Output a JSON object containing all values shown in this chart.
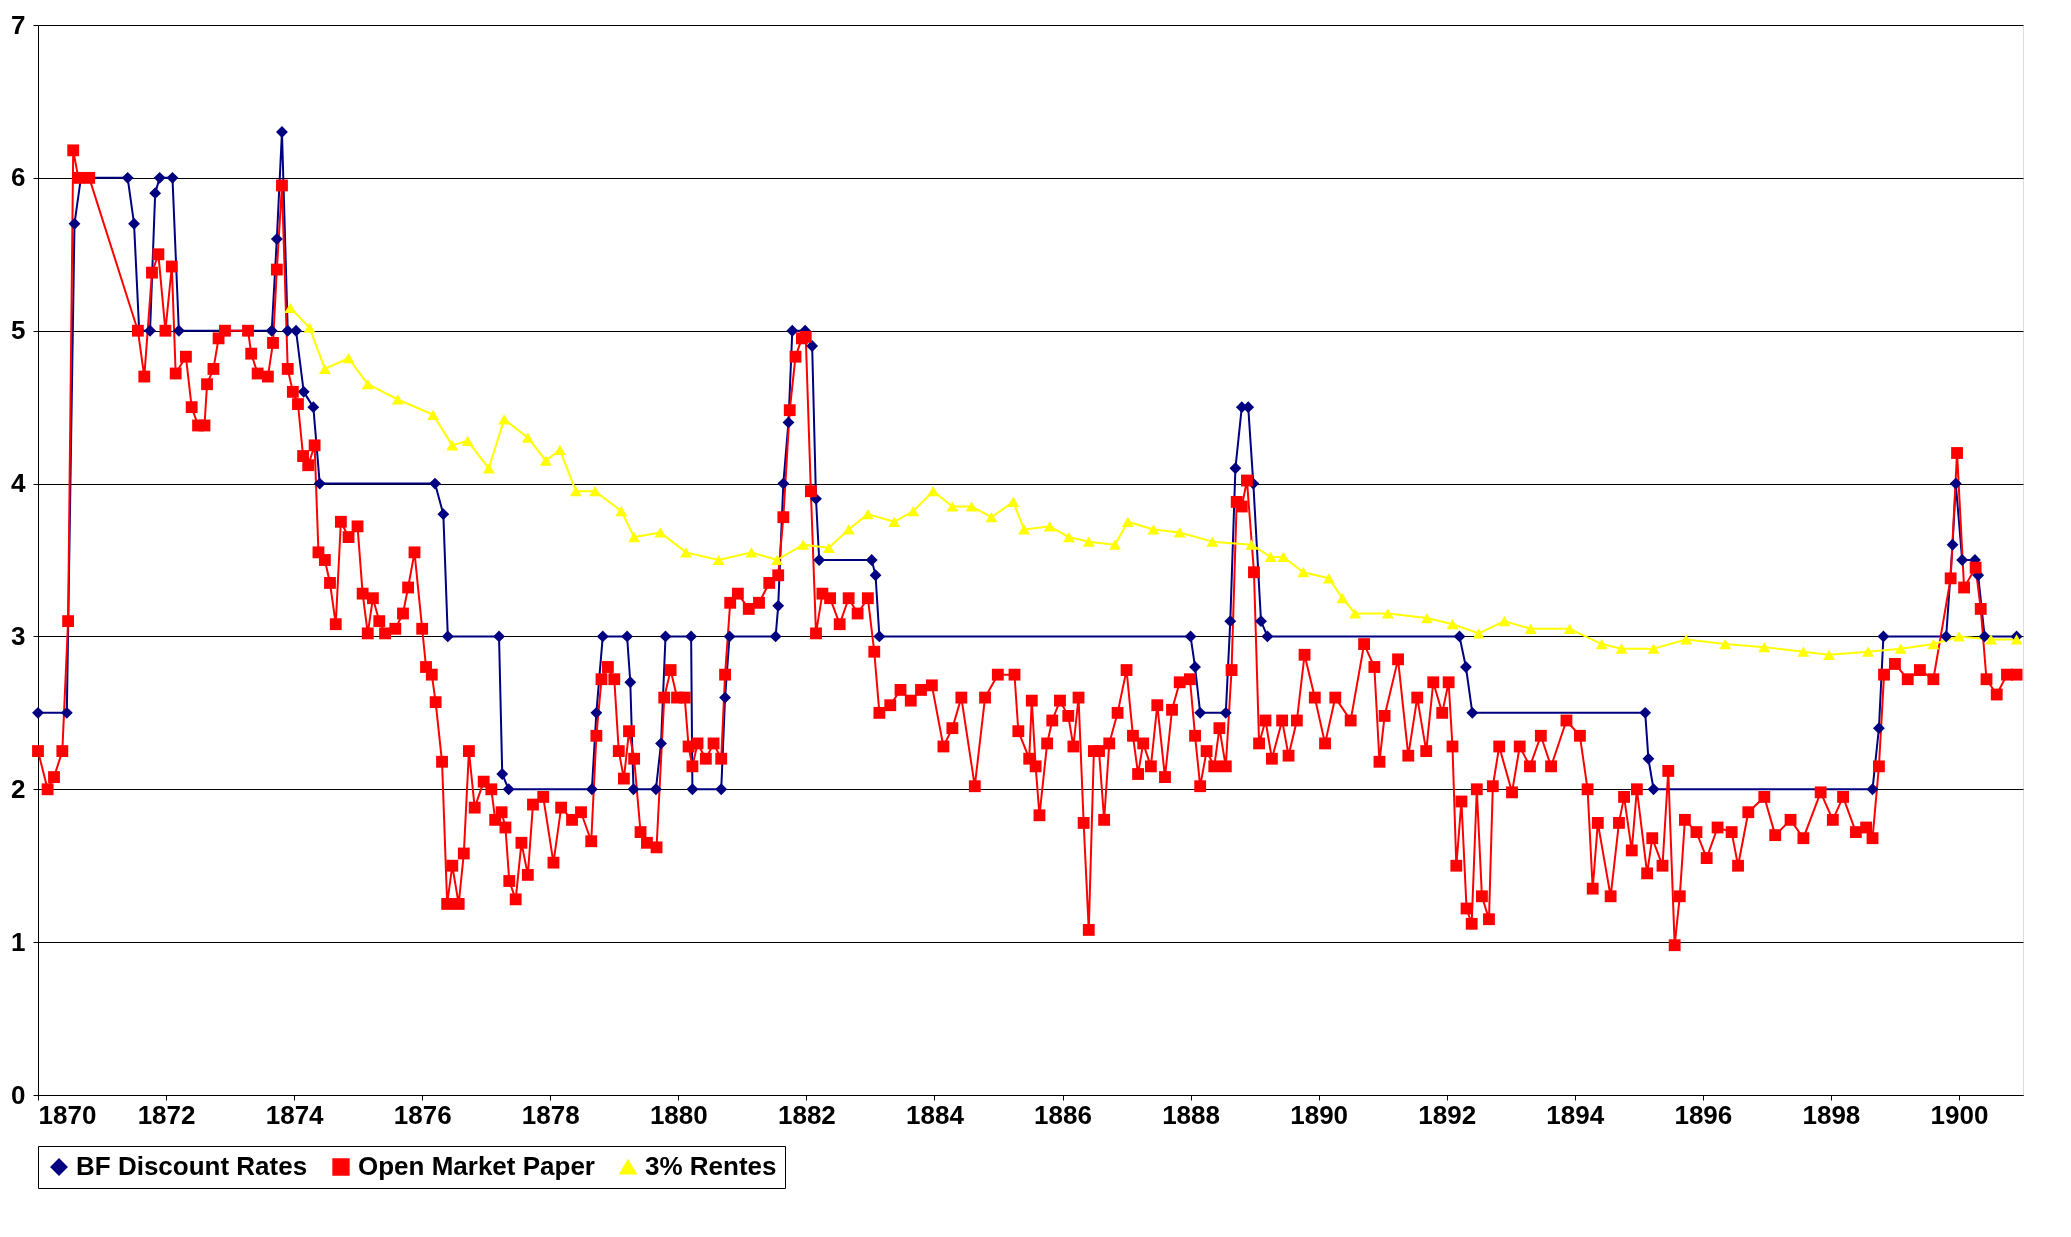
{
  "chart_data": {
    "type": "line",
    "xlim": [
      1870,
      1901
    ],
    "xticks": [
      1870,
      1872,
      1874,
      1876,
      1878,
      1880,
      1882,
      1884,
      1886,
      1888,
      1890,
      1892,
      1894,
      1896,
      1898,
      1900
    ],
    "ylim": [
      0,
      7
    ],
    "yticks": [
      0,
      1,
      2,
      3,
      4,
      5,
      6,
      7
    ],
    "grid": "y",
    "legend": "bottom",
    "series": [
      {
        "name": "BF Discount Rates",
        "color": "#000080",
        "marker": "diamond",
        "x": [
          1870.0,
          1870.45,
          1870.57,
          1870.67,
          1871.4,
          1871.5,
          1871.58,
          1871.75,
          1871.83,
          1871.9,
          1872.1,
          1872.2,
          1873.65,
          1873.73,
          1873.81,
          1873.9,
          1874.03,
          1874.15,
          1874.3,
          1874.4,
          1876.2,
          1876.33,
          1876.4,
          1877.2,
          1877.25,
          1877.35,
          1878.65,
          1878.72,
          1878.82,
          1879.2,
          1879.25,
          1879.3,
          1879.65,
          1879.73,
          1879.8,
          1880.2,
          1880.22,
          1880.67,
          1880.73,
          1880.8,
          1881.52,
          1881.56,
          1881.64,
          1881.72,
          1881.78,
          1881.98,
          1882.09,
          1882.15,
          1882.2,
          1883.02,
          1883.08,
          1883.14,
          1888.0,
          1888.07,
          1888.15,
          1888.55,
          1888.62,
          1888.7,
          1888.8,
          1888.9,
          1888.98,
          1889.1,
          1889.2,
          1892.2,
          1892.3,
          1892.4,
          1895.1,
          1895.15,
          1895.23,
          1898.65,
          1898.75,
          1898.82,
          1899.8,
          1899.9,
          1899.95,
          1900.05,
          1900.25,
          1900.3,
          1900.4,
          1900.9
        ],
        "values": [
          2.5,
          2.5,
          5.7,
          6,
          6,
          5.7,
          5,
          5,
          5.9,
          6,
          6,
          5,
          5,
          5.6,
          6.3,
          5,
          5,
          4.6,
          4.5,
          4,
          4,
          3.8,
          3,
          3,
          2.1,
          2,
          2,
          2.5,
          3,
          3,
          2.7,
          2,
          2,
          2.3,
          3,
          3,
          2,
          2,
          2.6,
          3,
          3,
          3.2,
          4,
          4.4,
          5,
          5,
          4.9,
          3.9,
          3.5,
          3.5,
          3.4,
          3,
          3,
          2.8,
          2.5,
          2.5,
          3.1,
          4.1,
          4.5,
          4.5,
          4,
          3.1,
          3,
          3,
          2.8,
          2.5,
          2.5,
          2.2,
          2,
          2,
          2.4,
          3,
          3,
          3.6,
          4,
          3.5,
          3.5,
          3.4,
          3,
          3
        ]
      },
      {
        "name": "Open Market Paper",
        "color": "#ff0000",
        "marker": "square",
        "x": [
          1870.0,
          1870.15,
          1870.25,
          1870.38,
          1870.47,
          1870.55,
          1870.63,
          1870.8,
          1871.56,
          1871.66,
          1871.78,
          1871.88,
          1871.99,
          1872.09,
          1872.15,
          1872.31,
          1872.4,
          1872.5,
          1872.6,
          1872.64,
          1872.74,
          1872.82,
          1872.92,
          1873.28,
          1873.33,
          1873.43,
          1873.59,
          1873.67,
          1873.73,
          1873.81,
          1873.9,
          1873.98,
          1874.06,
          1874.14,
          1874.22,
          1874.32,
          1874.38,
          1874.48,
          1874.56,
          1874.65,
          1874.73,
          1874.85,
          1874.99,
          1875.07,
          1875.15,
          1875.23,
          1875.33,
          1875.42,
          1875.58,
          1875.7,
          1875.78,
          1875.88,
          1876.0,
          1876.06,
          1876.15,
          1876.21,
          1876.31,
          1876.39,
          1876.47,
          1876.57,
          1876.65,
          1876.73,
          1876.82,
          1876.96,
          1877.08,
          1877.14,
          1877.24,
          1877.3,
          1877.36,
          1877.46,
          1877.55,
          1877.65,
          1877.73,
          1877.89,
          1878.05,
          1878.17,
          1878.34,
          1878.48,
          1878.64,
          1878.72,
          1878.8,
          1878.9,
          1879.0,
          1879.07,
          1879.15,
          1879.23,
          1879.31,
          1879.41,
          1879.51,
          1879.66,
          1879.78,
          1879.88,
          1879.98,
          1880.1,
          1880.16,
          1880.22,
          1880.3,
          1880.43,
          1880.55,
          1880.67,
          1880.73,
          1880.81,
          1880.93,
          1881.1,
          1881.26,
          1881.42,
          1881.56,
          1881.64,
          1881.74,
          1881.83,
          1881.93,
          1881.99,
          1882.07,
          1882.15,
          1882.25,
          1882.37,
          1882.52,
          1882.66,
          1882.8,
          1882.96,
          1883.06,
          1883.14,
          1883.31,
          1883.47,
          1883.63,
          1883.79,
          1883.96,
          1884.14,
          1884.28,
          1884.42,
          1884.63,
          1884.79,
          1884.99,
          1885.25,
          1885.31,
          1885.48,
          1885.52,
          1885.58,
          1885.64,
          1885.76,
          1885.84,
          1885.96,
          1886.09,
          1886.17,
          1886.25,
          1886.33,
          1886.41,
          1886.49,
          1886.57,
          1886.65,
          1886.73,
          1886.86,
          1887.0,
          1887.1,
          1887.18,
          1887.26,
          1887.38,
          1887.48,
          1887.6,
          1887.71,
          1887.83,
          1887.99,
          1888.07,
          1888.15,
          1888.25,
          1888.37,
          1888.45,
          1888.55,
          1888.64,
          1888.72,
          1888.8,
          1888.88,
          1888.99,
          1889.07,
          1889.17,
          1889.27,
          1889.43,
          1889.53,
          1889.66,
          1889.78,
          1889.94,
          1890.1,
          1890.26,
          1890.5,
          1890.71,
          1890.87,
          1890.95,
          1891.03,
          1891.24,
          1891.4,
          1891.54,
          1891.68,
          1891.79,
          1891.93,
          1892.03,
          1892.09,
          1892.15,
          1892.23,
          1892.31,
          1892.39,
          1892.47,
          1892.55,
          1892.66,
          1892.72,
          1892.82,
          1893.02,
          1893.14,
          1893.3,
          1893.47,
          1893.63,
          1893.87,
          1894.08,
          1894.2,
          1894.28,
          1894.36,
          1894.56,
          1894.69,
          1894.77,
          1894.89,
          1894.97,
          1895.13,
          1895.21,
          1895.37,
          1895.46,
          1895.56,
          1895.64,
          1895.72,
          1895.9,
          1896.06,
          1896.23,
          1896.45,
          1896.55,
          1896.71,
          1896.96,
          1897.13,
          1897.37,
          1897.57,
          1897.84,
          1898.03,
          1898.19,
          1898.39,
          1898.55,
          1898.65,
          1898.75,
          1898.83,
          1899.0,
          1899.2,
          1899.39,
          1899.6,
          1899.87,
          1899.97,
          1900.08,
          1900.26,
          1900.34,
          1900.43,
          1900.59,
          1900.75,
          1900.9
        ],
        "values": [
          2.25,
          2.0,
          2.08,
          2.25,
          3.1,
          6.18,
          6.0,
          6.0,
          5.0,
          4.7,
          5.38,
          5.5,
          5.0,
          5.42,
          4.72,
          4.83,
          4.5,
          4.38,
          4.38,
          4.65,
          4.75,
          4.95,
          5.0,
          5.0,
          4.85,
          4.72,
          4.7,
          4.92,
          5.4,
          5.95,
          4.75,
          4.6,
          4.52,
          4.18,
          4.12,
          4.25,
          3.55,
          3.5,
          3.35,
          3.08,
          3.75,
          3.65,
          3.72,
          3.28,
          3.02,
          3.25,
          3.1,
          3.02,
          3.05,
          3.15,
          3.32,
          3.55,
          3.05,
          2.8,
          2.75,
          2.57,
          2.18,
          1.25,
          1.5,
          1.25,
          1.58,
          2.25,
          1.88,
          2.05,
          2.0,
          1.8,
          1.85,
          1.75,
          1.4,
          1.28,
          1.65,
          1.44,
          1.9,
          1.95,
          1.52,
          1.88,
          1.8,
          1.85,
          1.66,
          2.35,
          2.72,
          2.8,
          2.72,
          2.25,
          2.07,
          2.38,
          2.2,
          1.72,
          1.65,
          1.62,
          2.6,
          2.78,
          2.6,
          2.6,
          2.28,
          2.15,
          2.3,
          2.2,
          2.3,
          2.2,
          2.75,
          3.22,
          3.28,
          3.18,
          3.22,
          3.35,
          3.4,
          3.78,
          4.48,
          4.83,
          4.95,
          4.96,
          3.95,
          3.02,
          3.28,
          3.25,
          3.08,
          3.25,
          3.15,
          3.25,
          2.9,
          2.5,
          2.55,
          2.65,
          2.58,
          2.65,
          2.68,
          2.28,
          2.4,
          2.6,
          2.02,
          2.6,
          2.75,
          2.75,
          2.38,
          2.2,
          2.58,
          2.15,
          1.83,
          2.3,
          2.45,
          2.58,
          2.48,
          2.28,
          2.6,
          1.78,
          1.08,
          2.25,
          2.25,
          1.8,
          2.3,
          2.5,
          2.78,
          2.35,
          2.1,
          2.3,
          2.15,
          2.55,
          2.08,
          2.52,
          2.7,
          2.72,
          2.35,
          2.02,
          2.25,
          2.15,
          2.4,
          2.15,
          2.78,
          3.88,
          3.85,
          4.02,
          3.42,
          2.3,
          2.45,
          2.2,
          2.45,
          2.22,
          2.45,
          2.88,
          2.6,
          2.3,
          2.6,
          2.45,
          2.95,
          2.8,
          2.18,
          2.48,
          2.85,
          2.22,
          2.6,
          2.25,
          2.7,
          2.5,
          2.7,
          2.28,
          1.5,
          1.92,
          1.22,
          1.12,
          2.0,
          1.3,
          1.15,
          2.02,
          2.28,
          1.98,
          2.28,
          2.15,
          2.35,
          2.15,
          2.45,
          2.35,
          2.0,
          1.35,
          1.78,
          1.3,
          1.78,
          1.95,
          1.6,
          2.0,
          1.45,
          1.68,
          1.5,
          2.12,
          0.98,
          1.3,
          1.8,
          1.72,
          1.55,
          1.75,
          1.72,
          1.5,
          1.85,
          1.95,
          1.7,
          1.8,
          1.68,
          1.98,
          1.8,
          1.95,
          1.72,
          1.75,
          1.68,
          2.15,
          2.75,
          2.82,
          2.72,
          2.78,
          2.72,
          3.38,
          4.2,
          3.32,
          3.45,
          3.18,
          2.72,
          2.62,
          2.75,
          2.75
        ]
      },
      {
        "name": "3% Rentes",
        "color": "#ffff00",
        "marker": "triangle",
        "x": [
          1873.94,
          1874.24,
          1874.48,
          1874.85,
          1875.15,
          1875.62,
          1876.17,
          1876.47,
          1876.71,
          1877.04,
          1877.28,
          1877.65,
          1877.93,
          1878.15,
          1878.4,
          1878.7,
          1879.11,
          1879.31,
          1879.72,
          1880.12,
          1880.63,
          1881.14,
          1881.54,
          1881.95,
          1882.35,
          1882.66,
          1882.96,
          1883.37,
          1883.67,
          1883.98,
          1884.28,
          1884.58,
          1884.89,
          1885.23,
          1885.4,
          1885.8,
          1886.1,
          1886.41,
          1886.82,
          1887.02,
          1887.42,
          1887.83,
          1888.34,
          1888.95,
          1889.25,
          1889.45,
          1889.76,
          1890.16,
          1890.37,
          1890.57,
          1891.08,
          1891.69,
          1892.09,
          1892.5,
          1892.9,
          1893.31,
          1893.92,
          1894.42,
          1894.73,
          1895.23,
          1895.74,
          1896.35,
          1896.96,
          1897.57,
          1897.97,
          1898.58,
          1899.09,
          1899.6,
          1900.0,
          1900.5,
          1900.9
        ],
        "values": [
          5.15,
          5.02,
          4.75,
          4.82,
          4.65,
          4.55,
          4.45,
          4.25,
          4.28,
          4.1,
          4.42,
          4.3,
          4.15,
          4.22,
          3.95,
          3.95,
          3.82,
          3.65,
          3.68,
          3.55,
          3.5,
          3.55,
          3.5,
          3.6,
          3.58,
          3.7,
          3.8,
          3.75,
          3.82,
          3.95,
          3.85,
          3.85,
          3.78,
          3.88,
          3.7,
          3.72,
          3.65,
          3.62,
          3.6,
          3.75,
          3.7,
          3.68,
          3.62,
          3.6,
          3.52,
          3.52,
          3.42,
          3.38,
          3.25,
          3.15,
          3.15,
          3.12,
          3.08,
          3.02,
          3.1,
          3.05,
          3.05,
          2.95,
          2.92,
          2.92,
          2.98,
          2.95,
          2.93,
          2.9,
          2.88,
          2.9,
          2.92,
          2.95,
          3.0,
          2.98,
          2.98
        ]
      }
    ]
  }
}
